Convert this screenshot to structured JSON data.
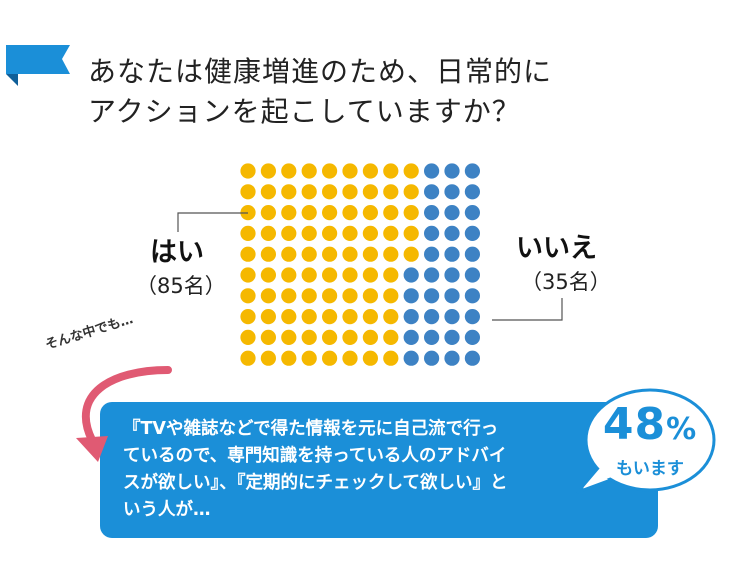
{
  "title": {
    "line1": "あなたは健康増進のため、日常的に",
    "line2": "アクションを起こしていますか？"
  },
  "chart_data": {
    "type": "unit-dot",
    "rows": 10,
    "columns": 12,
    "total": 120,
    "categories": [
      "はい",
      "いいえ"
    ],
    "values": [
      85,
      35
    ],
    "series": [
      {
        "name": "はい",
        "count": 85,
        "count_label": "（85名）",
        "color": "#f5b800"
      },
      {
        "name": "いいえ",
        "count": 35,
        "count_label": "（35名）",
        "color": "#3d82c4"
      }
    ]
  },
  "annotation": {
    "lead": "そんな中でも…",
    "callout_lines": [
      "『TVや雑誌などで得た情報を元に自己流で行っ",
      "ているので、専門知識を持っている人のアドバイ",
      "スが欲しい』、『定期的にチェックして欲しい』と",
      "いう人が…"
    ],
    "percent": "48",
    "percent_unit": "%",
    "percent_sub": "もいます"
  },
  "colors": {
    "accent_blue": "#1b8fd8",
    "arrow_pink": "#e05a73",
    "yes_dot": "#f5b800",
    "no_dot": "#3d82c4"
  }
}
